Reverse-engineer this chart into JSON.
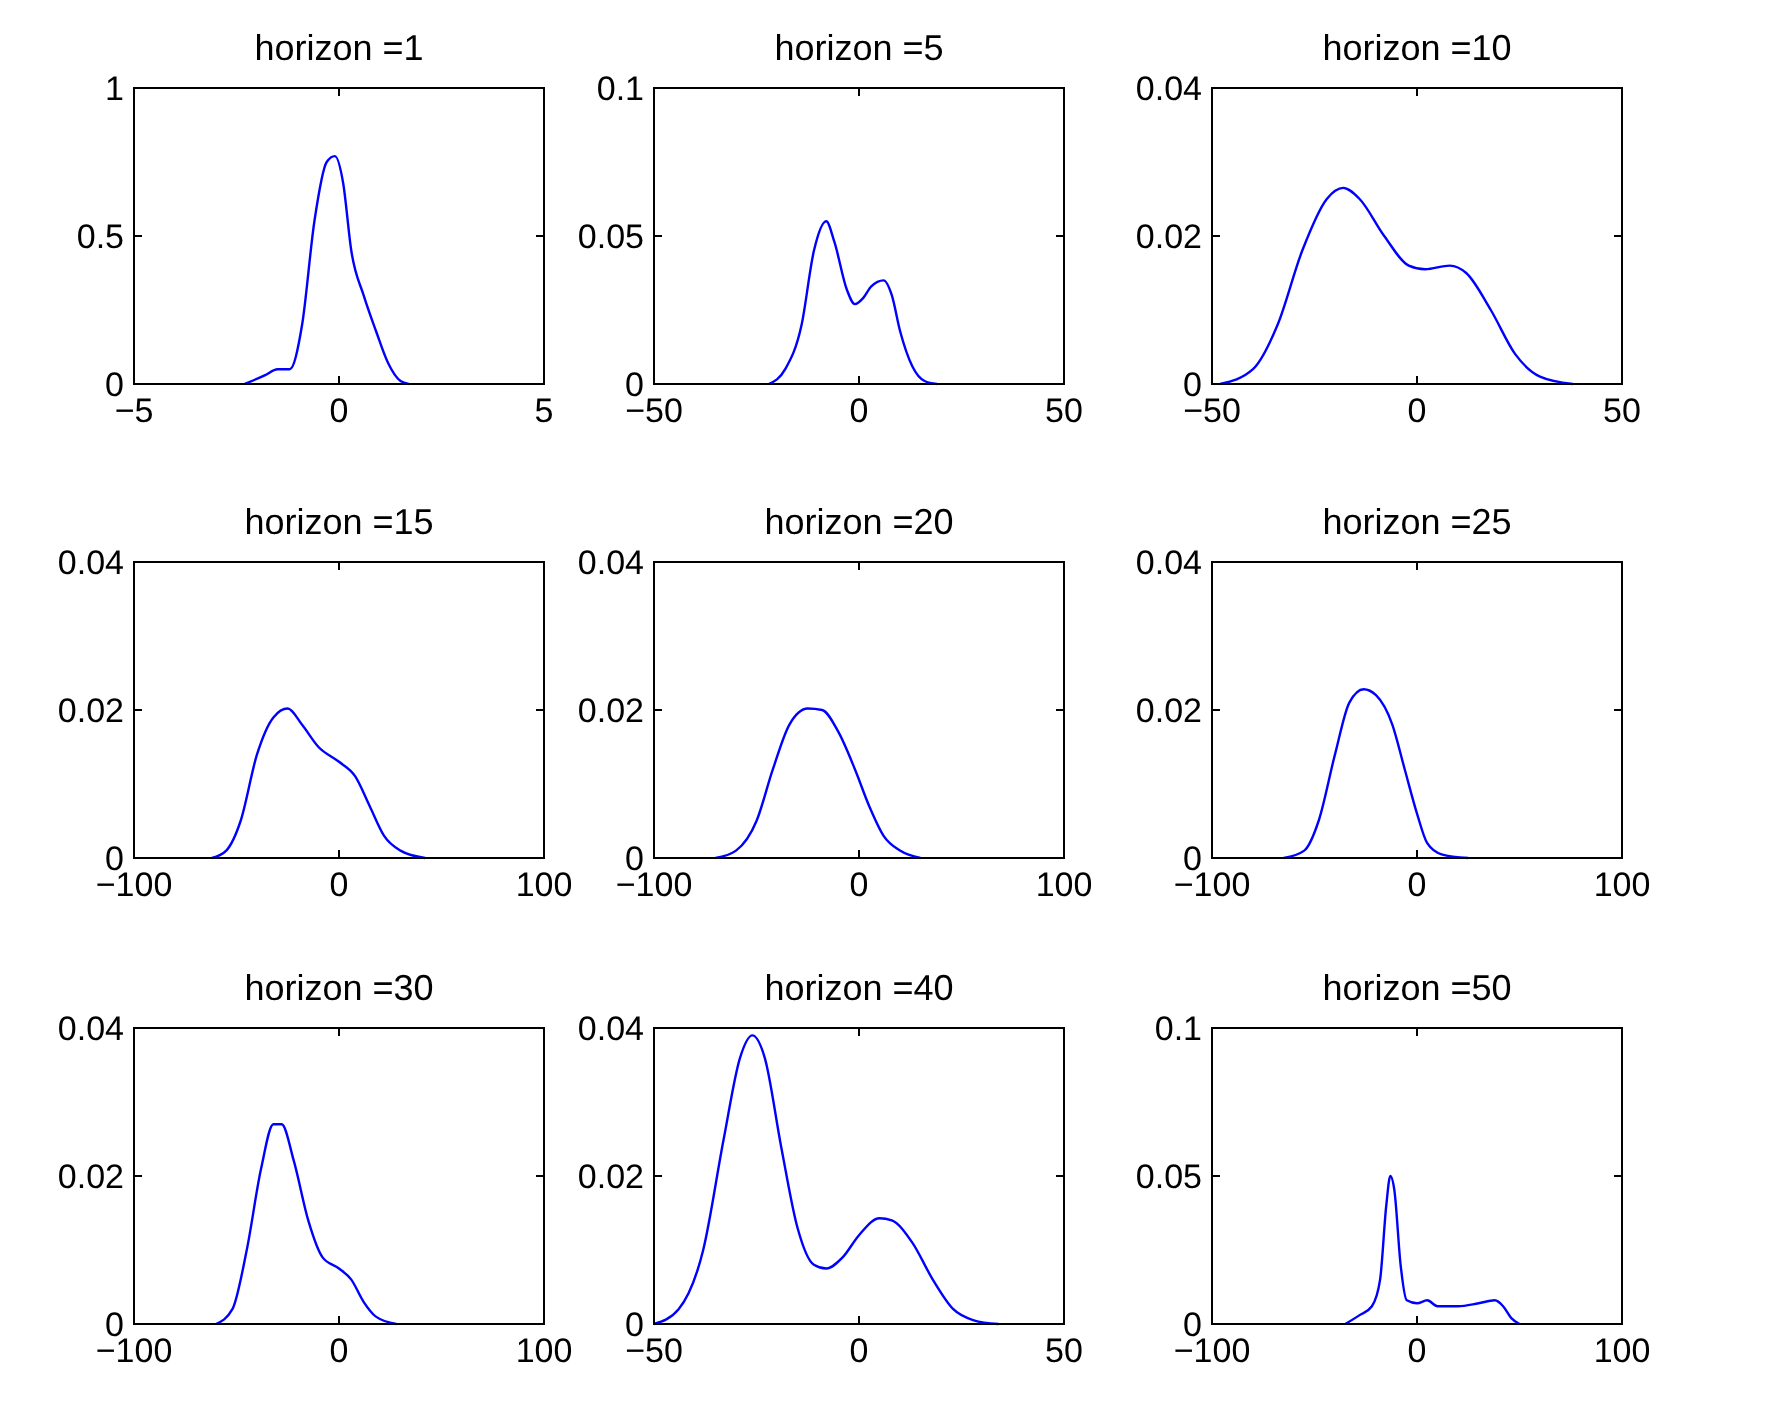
{
  "chart_data": [
    {
      "type": "line",
      "title": "horizon =1",
      "color": "#0000ff",
      "xlim": [
        -5,
        5
      ],
      "ylim": [
        0,
        1
      ],
      "xticks": [
        {
          "value": -5,
          "label": "−5"
        },
        0,
        5
      ],
      "yticks": [
        0,
        0.5,
        1
      ],
      "x": [
        -2.3,
        -1.8,
        -1.5,
        -1.2,
        -0.9,
        -0.6,
        -0.3,
        -0.1,
        0.1,
        0.3,
        0.6,
        0.9,
        1.2,
        1.5,
        1.7
      ],
      "values": [
        0,
        0.03,
        0.05,
        0.05,
        0.2,
        0.55,
        0.75,
        0.77,
        0.68,
        0.45,
        0.3,
        0.18,
        0.07,
        0.01,
        0
      ]
    },
    {
      "type": "line",
      "title": "horizon =5",
      "color": "#0000ff",
      "xlim": [
        -50,
        50
      ],
      "ylim": [
        0,
        0.1
      ],
      "xticks": [
        {
          "value": -50,
          "label": "−50"
        },
        0,
        50
      ],
      "yticks": [
        0,
        0.05,
        0.1
      ],
      "x": [
        -22,
        -18,
        -14,
        -11,
        -8,
        -6,
        -3,
        -1,
        1,
        3,
        6,
        8,
        10,
        13,
        16,
        19
      ],
      "values": [
        0,
        0.005,
        0.02,
        0.045,
        0.055,
        0.048,
        0.032,
        0.027,
        0.029,
        0.033,
        0.035,
        0.03,
        0.018,
        0.006,
        0.001,
        0
      ]
    },
    {
      "type": "line",
      "title": "horizon =10",
      "color": "#0000ff",
      "xlim": [
        -50,
        50
      ],
      "ylim": [
        0,
        0.04
      ],
      "xticks": [
        {
          "value": -50,
          "label": "−50"
        },
        0,
        50
      ],
      "yticks": [
        0,
        0.02,
        0.04
      ],
      "x": [
        -48,
        -40,
        -34,
        -28,
        -22,
        -18,
        -14,
        -8,
        -2,
        2,
        8,
        12,
        18,
        24,
        30,
        38
      ],
      "values": [
        0,
        0.002,
        0.008,
        0.018,
        0.025,
        0.0265,
        0.025,
        0.02,
        0.016,
        0.0155,
        0.016,
        0.015,
        0.01,
        0.004,
        0.001,
        0
      ]
    },
    {
      "type": "line",
      "title": "horizon =15",
      "color": "#0000ff",
      "xlim": [
        -100,
        100
      ],
      "ylim": [
        0,
        0.04
      ],
      "xticks": [
        {
          "value": -100,
          "label": "−100"
        },
        0,
        100
      ],
      "yticks": [
        0,
        0.02,
        0.04
      ],
      "x": [
        -62,
        -55,
        -48,
        -40,
        -32,
        -25,
        -18,
        -10,
        0,
        8,
        15,
        22,
        30,
        42
      ],
      "values": [
        0,
        0.001,
        0.005,
        0.014,
        0.019,
        0.0202,
        0.018,
        0.015,
        0.013,
        0.011,
        0.007,
        0.003,
        0.001,
        0
      ]
    },
    {
      "type": "line",
      "title": "horizon =20",
      "color": "#0000ff",
      "xlim": [
        -100,
        100
      ],
      "ylim": [
        0,
        0.04
      ],
      "xticks": [
        {
          "value": -100,
          "label": "−100"
        },
        0,
        100
      ],
      "yticks": [
        0,
        0.02,
        0.04
      ],
      "x": [
        -70,
        -60,
        -50,
        -42,
        -34,
        -25,
        -18,
        -10,
        -2,
        5,
        12,
        20,
        30
      ],
      "values": [
        0,
        0.001,
        0.005,
        0.012,
        0.018,
        0.0202,
        0.02,
        0.017,
        0.012,
        0.007,
        0.003,
        0.001,
        0
      ]
    },
    {
      "type": "line",
      "title": "horizon =25",
      "color": "#0000ff",
      "xlim": [
        -100,
        100
      ],
      "ylim": [
        0,
        0.04
      ],
      "xticks": [
        {
          "value": -100,
          "label": "−100"
        },
        0,
        100
      ],
      "yticks": [
        0,
        0.02,
        0.04
      ],
      "x": [
        -65,
        -55,
        -48,
        -40,
        -33,
        -26,
        -20,
        -12,
        -6,
        0,
        5,
        12,
        25
      ],
      "values": [
        0,
        0.001,
        0.005,
        0.014,
        0.021,
        0.0228,
        0.022,
        0.018,
        0.012,
        0.006,
        0.002,
        0.0005,
        0
      ]
    },
    {
      "type": "line",
      "title": "horizon =30",
      "color": "#0000ff",
      "xlim": [
        -100,
        100
      ],
      "ylim": [
        0,
        0.04
      ],
      "xticks": [
        {
          "value": -100,
          "label": "−100"
        },
        0,
        100
      ],
      "yticks": [
        0,
        0.02,
        0.04
      ],
      "x": [
        -60,
        -52,
        -45,
        -38,
        -32,
        -28,
        -22,
        -15,
        -8,
        0,
        6,
        12,
        18,
        28
      ],
      "values": [
        0,
        0.002,
        0.01,
        0.021,
        0.027,
        0.027,
        0.022,
        0.014,
        0.009,
        0.0075,
        0.006,
        0.003,
        0.001,
        0
      ]
    },
    {
      "type": "line",
      "title": "horizon =40",
      "color": "#0000ff",
      "xlim": [
        -50,
        50
      ],
      "ylim": [
        0,
        0.04
      ],
      "xticks": [
        {
          "value": -50,
          "label": "−50"
        },
        0,
        50
      ],
      "yticks": [
        0,
        0.02,
        0.04
      ],
      "x": [
        -50,
        -44,
        -38,
        -33,
        -29,
        -26,
        -23,
        -19,
        -15,
        -11,
        -8,
        -4,
        0,
        5,
        8,
        13,
        18,
        23,
        28,
        34
      ],
      "values": [
        0,
        0.002,
        0.01,
        0.025,
        0.036,
        0.039,
        0.036,
        0.024,
        0.013,
        0.008,
        0.0075,
        0.009,
        0.012,
        0.0143,
        0.014,
        0.011,
        0.006,
        0.002,
        0.0005,
        0
      ]
    },
    {
      "type": "line",
      "title": "horizon =50",
      "color": "#0000ff",
      "xlim": [
        -100,
        100
      ],
      "ylim": [
        0,
        0.1
      ],
      "xticks": [
        {
          "value": -100,
          "label": "−100"
        },
        0,
        100
      ],
      "yticks": [
        0,
        0.05,
        0.1
      ],
      "x": [
        -35,
        -28,
        -22,
        -18,
        -15,
        -13,
        -11,
        -8,
        -5,
        0,
        5,
        10,
        20,
        30,
        38,
        42,
        46,
        50
      ],
      "values": [
        0,
        0.003,
        0.006,
        0.015,
        0.04,
        0.05,
        0.045,
        0.02,
        0.008,
        0.007,
        0.008,
        0.006,
        0.006,
        0.007,
        0.008,
        0.006,
        0.002,
        0
      ]
    }
  ]
}
